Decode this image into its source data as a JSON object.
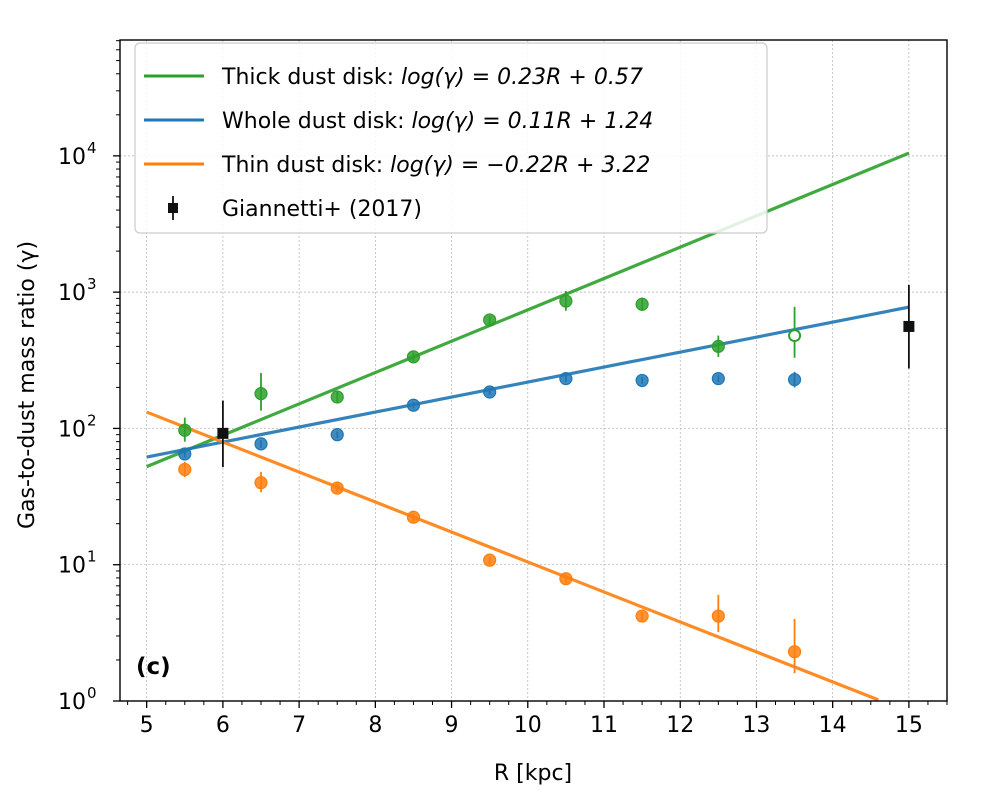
{
  "chart_data": {
    "type": "scatter",
    "xlabel": "R  [kpc]",
    "ylabel": "Gas-to-dust mass ratio (γ)",
    "xlim": [
      4.65,
      15.5
    ],
    "ylim_log10": [
      0,
      4.85
    ],
    "yscale": "log",
    "x_ticks": [
      5,
      6,
      7,
      8,
      9,
      10,
      11,
      12,
      13,
      14,
      15
    ],
    "x_tick_labels": [
      "5",
      "6",
      "7",
      "8",
      "9",
      "10",
      "11",
      "12",
      "13",
      "14",
      "15"
    ],
    "y_ticks_log10": [
      0,
      1,
      2,
      3,
      4
    ],
    "y_tick_bases": [
      "10",
      "10",
      "10",
      "10",
      "10"
    ],
    "y_tick_exps": [
      "0",
      "1",
      "2",
      "3",
      "4"
    ],
    "panel_label": "(c)",
    "grid": true,
    "legend_position": "top-left",
    "series": [
      {
        "name": "Thick dust disk",
        "legend_label": "Thick dust disk:",
        "legend_formula": "log(γ) = 0.23R + 0.57",
        "color": "#2ca02c",
        "fit": {
          "slope": 0.23,
          "intercept": 0.57,
          "x_range": [
            5,
            15
          ]
        },
        "points": [
          {
            "x": 5.5,
            "y": 97,
            "lo": 80,
            "hi": 120,
            "open": false
          },
          {
            "x": 6.5,
            "y": 180,
            "lo": 135,
            "hi": 255,
            "open": false
          },
          {
            "x": 7.5,
            "y": 170,
            "lo": 155,
            "hi": 185,
            "open": false
          },
          {
            "x": 8.5,
            "y": 335,
            "lo": 310,
            "hi": 360,
            "open": false
          },
          {
            "x": 9.5,
            "y": 625,
            "lo": 585,
            "hi": 665,
            "open": false
          },
          {
            "x": 10.5,
            "y": 860,
            "lo": 730,
            "hi": 1020,
            "open": false
          },
          {
            "x": 11.5,
            "y": 815,
            "lo": 730,
            "hi": 910,
            "open": false
          },
          {
            "x": 12.5,
            "y": 400,
            "lo": 335,
            "hi": 480,
            "open": false
          }
        ]
      },
      {
        "name": "Whole dust disk",
        "legend_label": "Whole dust disk:",
        "legend_formula": "log(γ) = 0.11R + 1.24",
        "color": "#1f77b4",
        "fit": {
          "slope": 0.11,
          "intercept": 1.24,
          "x_range": [
            5,
            15
          ]
        },
        "points": [
          {
            "x": 5.5,
            "y": 65,
            "lo": 61,
            "hi": 69,
            "open": false
          },
          {
            "x": 6.5,
            "y": 77,
            "lo": 72,
            "hi": 82,
            "open": false
          },
          {
            "x": 7.5,
            "y": 90,
            "lo": 85,
            "hi": 95,
            "open": false
          },
          {
            "x": 8.5,
            "y": 148,
            "lo": 140,
            "hi": 156,
            "open": false
          },
          {
            "x": 9.5,
            "y": 185,
            "lo": 176,
            "hi": 194,
            "open": false
          },
          {
            "x": 10.5,
            "y": 232,
            "lo": 220,
            "hi": 244,
            "open": false
          },
          {
            "x": 11.5,
            "y": 225,
            "lo": 212,
            "hi": 238,
            "open": false
          },
          {
            "x": 12.5,
            "y": 232,
            "lo": 219,
            "hi": 245,
            "open": false
          },
          {
            "x": 13.5,
            "y": 228,
            "lo": 200,
            "hi": 260,
            "open": false
          }
        ]
      },
      {
        "name": "Thin dust disk",
        "legend_label": "Thin dust disk:",
        "legend_formula": "log(γ) = −0.22R + 3.22",
        "color": "#ff7f0e",
        "fit": {
          "slope": -0.22,
          "intercept": 3.22,
          "x_range": [
            5,
            14.6
          ]
        },
        "points": [
          {
            "x": 5.5,
            "y": 50,
            "lo": 44,
            "hi": 57,
            "open": false
          },
          {
            "x": 6.5,
            "y": 40,
            "lo": 34,
            "hi": 48,
            "open": false
          },
          {
            "x": 7.5,
            "y": 36.5,
            "lo": 34,
            "hi": 39,
            "open": false
          },
          {
            "x": 8.5,
            "y": 22.3,
            "lo": 20.8,
            "hi": 23.8,
            "open": false
          },
          {
            "x": 9.5,
            "y": 10.8,
            "lo": 10.1,
            "hi": 11.5,
            "open": false
          },
          {
            "x": 10.5,
            "y": 7.9,
            "lo": 7.3,
            "hi": 8.5,
            "open": false
          },
          {
            "x": 11.5,
            "y": 4.2,
            "lo": 3.9,
            "hi": 4.5,
            "open": false
          },
          {
            "x": 12.5,
            "y": 4.2,
            "lo": 3.2,
            "hi": 6.0,
            "open": false
          },
          {
            "x": 13.5,
            "y": 2.3,
            "lo": 1.6,
            "hi": 4.0,
            "open": false
          }
        ]
      },
      {
        "name": "Thick dust disk (open point)",
        "color": "#2ca02c",
        "points": [
          {
            "x": 13.5,
            "y": 480,
            "lo": 330,
            "hi": 780,
            "open": true
          }
        ]
      },
      {
        "name": "Giannetti+ (2017)",
        "legend_label": "Giannetti+ (2017)",
        "color": "#111111",
        "marker": "square",
        "points": [
          {
            "x": 6.0,
            "y": 92,
            "lo": 52,
            "hi": 160,
            "open": false
          },
          {
            "x": 15.0,
            "y": 560,
            "lo": 275,
            "hi": 1130,
            "open": false
          }
        ]
      }
    ]
  }
}
